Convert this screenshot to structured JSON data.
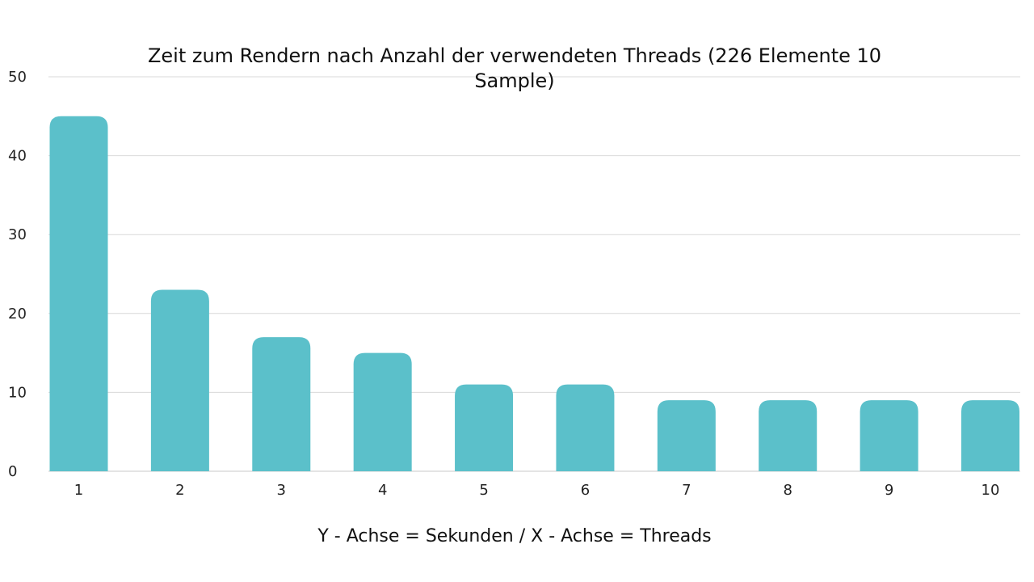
{
  "chart_data": {
    "type": "bar",
    "title_lines": [
      "Zeit zum Rendern nach Anzahl der verwendeten Threads (226 Elemente 10",
      "Sample)"
    ],
    "xlabel": "Y - Achse = Sekunden / X - Achse = Threads",
    "ylabel": "",
    "categories": [
      "1",
      "2",
      "3",
      "4",
      "5",
      "6",
      "7",
      "8",
      "9",
      "10"
    ],
    "values": [
      45,
      23,
      17,
      15,
      11,
      11,
      9,
      9,
      9,
      9
    ],
    "ylim": [
      0,
      50
    ],
    "yticks": [
      "0",
      "10",
      "20",
      "30",
      "40",
      "50"
    ],
    "grid": true,
    "legend": "none",
    "bar_color": "#5bc0ca"
  }
}
